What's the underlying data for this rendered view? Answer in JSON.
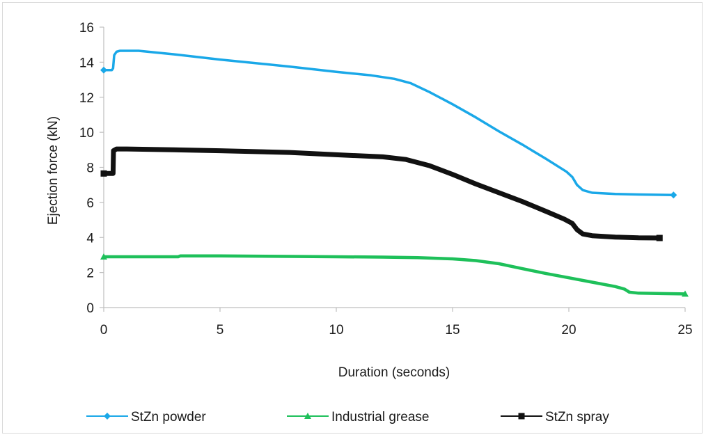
{
  "chart_data": {
    "type": "line",
    "title": "",
    "xlabel": "Duration (seconds)",
    "ylabel": "Ejection force (kN)",
    "xlim": [
      0,
      25
    ],
    "ylim": [
      0,
      16
    ],
    "x_ticks": [
      0,
      5,
      10,
      15,
      20,
      25
    ],
    "y_ticks": [
      0,
      2,
      4,
      6,
      8,
      10,
      12,
      14,
      16
    ],
    "grid": false,
    "legend_position": "bottom",
    "series": [
      {
        "name": "StZn powder",
        "color": "#1aa8e8",
        "marker": "diamond",
        "points": [
          [
            0,
            13.55
          ],
          [
            0.35,
            13.55
          ],
          [
            0.4,
            13.65
          ],
          [
            0.45,
            14.4
          ],
          [
            0.55,
            14.6
          ],
          [
            0.7,
            14.65
          ],
          [
            1.5,
            14.65
          ],
          [
            3,
            14.45
          ],
          [
            5,
            14.15
          ],
          [
            8,
            13.75
          ],
          [
            10,
            13.45
          ],
          [
            11.5,
            13.25
          ],
          [
            12.5,
            13.05
          ],
          [
            13.2,
            12.8
          ],
          [
            14,
            12.3
          ],
          [
            15,
            11.6
          ],
          [
            16,
            10.85
          ],
          [
            17,
            10.05
          ],
          [
            18,
            9.3
          ],
          [
            19,
            8.5
          ],
          [
            19.9,
            7.75
          ],
          [
            20.15,
            7.45
          ],
          [
            20.35,
            7.0
          ],
          [
            20.6,
            6.7
          ],
          [
            21,
            6.55
          ],
          [
            22,
            6.48
          ],
          [
            23,
            6.45
          ],
          [
            24.5,
            6.42
          ]
        ]
      },
      {
        "name": "Industrial grease",
        "color": "#1ec05a",
        "marker": "triangle",
        "points": [
          [
            0,
            2.9
          ],
          [
            0.3,
            2.9
          ],
          [
            2,
            2.9
          ],
          [
            3.2,
            2.9
          ],
          [
            3.3,
            2.95
          ],
          [
            5,
            2.95
          ],
          [
            8,
            2.92
          ],
          [
            10,
            2.9
          ],
          [
            12,
            2.88
          ],
          [
            13.5,
            2.85
          ],
          [
            15,
            2.78
          ],
          [
            16,
            2.68
          ],
          [
            17,
            2.5
          ],
          [
            18,
            2.22
          ],
          [
            19,
            1.95
          ],
          [
            20,
            1.7
          ],
          [
            21,
            1.45
          ],
          [
            22,
            1.2
          ],
          [
            22.4,
            1.05
          ],
          [
            22.6,
            0.88
          ],
          [
            23,
            0.82
          ],
          [
            24,
            0.8
          ],
          [
            25,
            0.78
          ]
        ]
      },
      {
        "name": "StZn spray",
        "color": "#111111",
        "marker": "square",
        "points": [
          [
            0,
            7.65
          ],
          [
            0.4,
            7.65
          ],
          [
            0.42,
            8.95
          ],
          [
            0.55,
            9.05
          ],
          [
            1,
            9.05
          ],
          [
            3,
            9.0
          ],
          [
            5,
            8.95
          ],
          [
            8,
            8.85
          ],
          [
            10,
            8.72
          ],
          [
            12,
            8.6
          ],
          [
            13,
            8.45
          ],
          [
            14,
            8.1
          ],
          [
            15,
            7.6
          ],
          [
            16,
            7.05
          ],
          [
            17,
            6.55
          ],
          [
            18,
            6.05
          ],
          [
            19,
            5.5
          ],
          [
            19.8,
            5.05
          ],
          [
            20.15,
            4.8
          ],
          [
            20.35,
            4.45
          ],
          [
            20.6,
            4.2
          ],
          [
            21,
            4.1
          ],
          [
            22,
            4.02
          ],
          [
            23,
            3.98
          ],
          [
            23.9,
            3.97
          ]
        ]
      }
    ]
  }
}
